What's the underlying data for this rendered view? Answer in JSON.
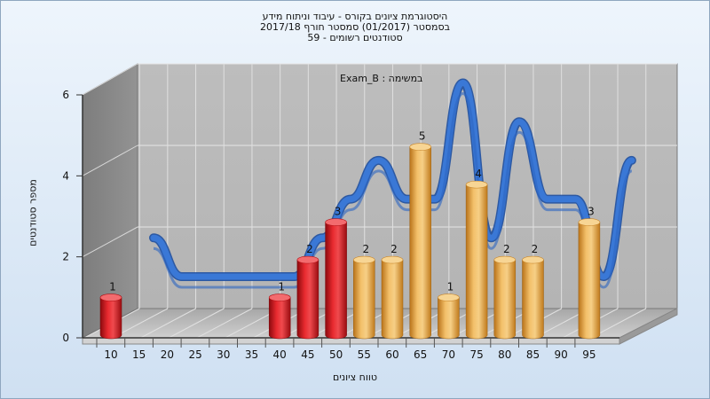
{
  "header": {
    "title_line1": "היסטוגרמת ציונים בקורס - עיבוד וניתוח מידע",
    "title_line2": "בסמסטר  (01/2017)  סמסטר חורף 2017/18",
    "title_line3": "סטודנטים רשומים - 59"
  },
  "chart_data": {
    "type": "bar",
    "title": "היסטוגרמת ציונים בקורס - עיבוד וניתוח מידע",
    "subtitle": "בסמסטר  (01/2017)  סמסטר חורף 2017/18 | סטודנטים רשומים - 59",
    "xlabel": "טווח ציונים",
    "ylabel": "מספר סטודנטים",
    "series_label": "Exam_B : במשימה",
    "categories": [
      "10",
      "15",
      "20",
      "25",
      "30",
      "35",
      "40",
      "45",
      "50",
      "55",
      "60",
      "65",
      "70",
      "75",
      "80",
      "85",
      "90",
      "95"
    ],
    "values": [
      1,
      0,
      0,
      0,
      0,
      0,
      1,
      2,
      3,
      2,
      2,
      5,
      1,
      4,
      2,
      2,
      0,
      3
    ],
    "ylim": [
      0,
      6
    ],
    "yticks": [
      0,
      2,
      4,
      6
    ],
    "grid": true,
    "bar_colors": {
      "fail": "#e0141b",
      "pass": "#e8a23a"
    },
    "line_color": "#2f6fce"
  }
}
